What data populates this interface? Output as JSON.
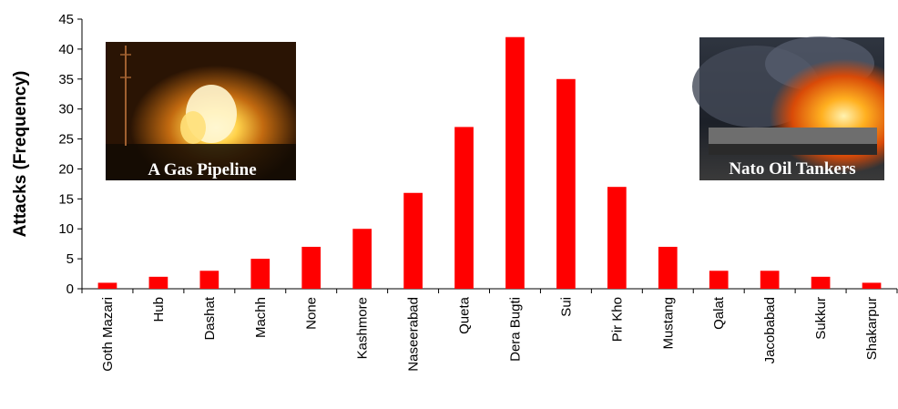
{
  "chart_data": {
    "type": "bar",
    "title": "",
    "xlabel": "",
    "ylabel": "Attacks (Frequency)",
    "ylim": [
      0,
      45
    ],
    "yticks": [
      0,
      5,
      10,
      15,
      20,
      25,
      30,
      35,
      40,
      45
    ],
    "categories": [
      "Goth Mazari",
      "Hub",
      "Dashat",
      "Machh",
      "None",
      "Kashmore",
      "Naseerabad",
      "Queta",
      "Dera Bugti",
      "Sui",
      "Pir Kho",
      "Mustang",
      "Qalat",
      "Jacobabad",
      "Sukkur",
      "Shakarpur"
    ],
    "values": [
      1,
      2,
      3,
      5,
      7,
      10,
      16,
      27,
      42,
      35,
      17,
      7,
      3,
      3,
      2,
      1
    ],
    "bar_color": "#ff0000",
    "grid": false,
    "legend": "none"
  },
  "photos": {
    "left": {
      "caption": "A Gas Pipeline",
      "icon": "gas-pipeline-fire-photo"
    },
    "right": {
      "caption": "Nato Oil Tankers",
      "icon": "burning-oil-tankers-photo"
    }
  }
}
